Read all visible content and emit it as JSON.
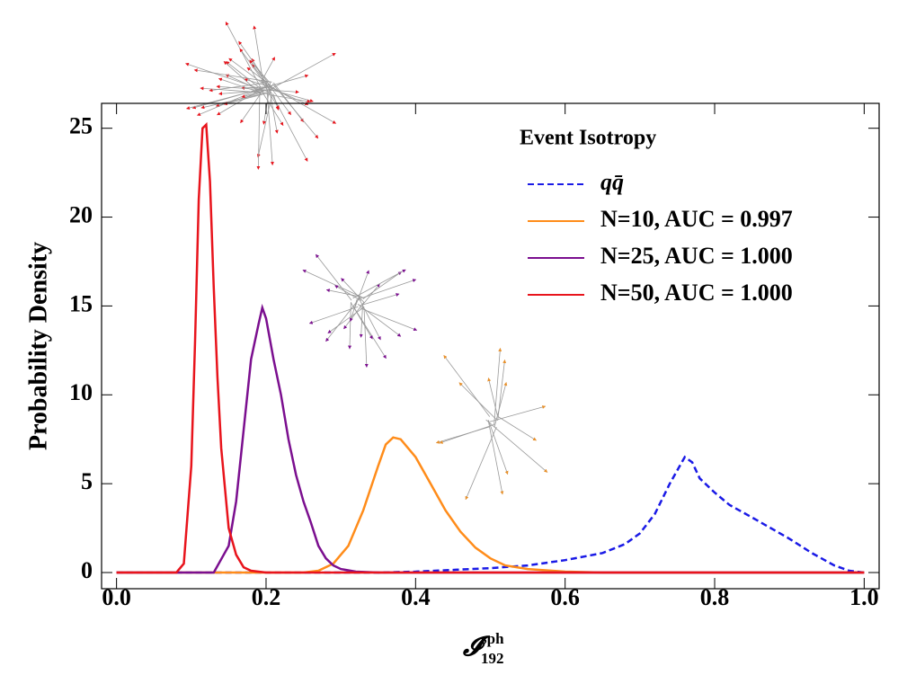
{
  "chart_data": {
    "type": "line",
    "ylabel": "Probability Density",
    "xlabel": {
      "symbol": "𝓘",
      "sup": "sph",
      "sub": "192"
    },
    "legend_title": "Event Isotropy",
    "legend": "upper right",
    "xlim": [
      -0.02,
      1.02
    ],
    "ylim": [
      -0.91,
      26.4
    ],
    "xticks": [
      {
        "value": 0,
        "label": "0.0"
      },
      0.2,
      0.4,
      0.6,
      0.8,
      {
        "value": 1,
        "label": "1.0"
      }
    ],
    "yticks": [
      0,
      5,
      10,
      15,
      20,
      25
    ],
    "series": [
      {
        "name": "qq̄",
        "color": "#1a1ae6",
        "dashed": true,
        "x": [
          0,
          0.35,
          0.4,
          0.5,
          0.55,
          0.6,
          0.65,
          0.68,
          0.7,
          0.72,
          0.74,
          0.76,
          0.77,
          0.78,
          0.8,
          0.82,
          0.85,
          0.9,
          0.93,
          0.96,
          0.98,
          1.0
        ],
        "values": [
          0,
          0,
          0.05,
          0.25,
          0.4,
          0.7,
          1.1,
          1.6,
          2.2,
          3.3,
          5,
          6.5,
          6.2,
          5.3,
          4.5,
          3.8,
          3.1,
          1.9,
          1.1,
          0.4,
          0.1,
          0
        ]
      },
      {
        "name": "N=10, AUC = 0.997",
        "color": "#ff8c1a",
        "dashed": false,
        "x": [
          0,
          0.25,
          0.27,
          0.29,
          0.31,
          0.33,
          0.35,
          0.36,
          0.37,
          0.38,
          0.4,
          0.42,
          0.44,
          0.46,
          0.48,
          0.5,
          0.52,
          0.55,
          0.6,
          0.65,
          1.0
        ],
        "values": [
          0,
          0,
          0.1,
          0.5,
          1.5,
          3.5,
          6,
          7.2,
          7.6,
          7.5,
          6.5,
          5,
          3.5,
          2.3,
          1.4,
          0.8,
          0.4,
          0.2,
          0.05,
          0,
          0
        ]
      },
      {
        "name": "N=25, AUC = 1.000",
        "color": "#7b0f8f",
        "dashed": false,
        "x": [
          0,
          0.13,
          0.15,
          0.16,
          0.17,
          0.18,
          0.19,
          0.195,
          0.2,
          0.21,
          0.22,
          0.23,
          0.24,
          0.25,
          0.26,
          0.27,
          0.28,
          0.29,
          0.3,
          0.32,
          0.35,
          1.0
        ],
        "values": [
          0,
          0,
          1.5,
          4,
          8,
          12,
          14,
          14.9,
          14.3,
          12,
          10,
          7.5,
          5.5,
          4,
          2.8,
          1.5,
          0.8,
          0.4,
          0.2,
          0.05,
          0,
          0
        ]
      },
      {
        "name": "N=50, AUC = 1.000",
        "color": "#e8141c",
        "dashed": false,
        "x": [
          0,
          0.08,
          0.09,
          0.1,
          0.105,
          0.11,
          0.115,
          0.12,
          0.125,
          0.13,
          0.135,
          0.14,
          0.15,
          0.16,
          0.17,
          0.18,
          0.2,
          1.0
        ],
        "values": [
          0,
          0,
          0.5,
          6,
          13,
          21,
          25,
          25.2,
          22,
          16,
          11,
          7,
          2.5,
          1,
          0.3,
          0.1,
          0,
          0
        ]
      }
    ]
  }
}
